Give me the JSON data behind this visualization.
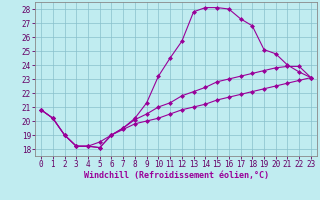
{
  "xlabel": "Windchill (Refroidissement éolien,°C)",
  "xlim": [
    -0.5,
    23.5
  ],
  "ylim": [
    17.5,
    28.5
  ],
  "xticks": [
    0,
    1,
    2,
    3,
    4,
    5,
    6,
    7,
    8,
    9,
    10,
    11,
    12,
    13,
    14,
    15,
    16,
    17,
    18,
    19,
    20,
    21,
    22,
    23
  ],
  "yticks": [
    18,
    19,
    20,
    21,
    22,
    23,
    24,
    25,
    26,
    27,
    28
  ],
  "background_color": "#c0ecf0",
  "grid_color": "#88c0cc",
  "line_color": "#990099",
  "line1_y": [
    20.8,
    20.2,
    19.0,
    18.2,
    18.2,
    18.1,
    19.0,
    19.5,
    20.2,
    21.3,
    23.2,
    24.5,
    25.7,
    27.8,
    28.1,
    28.1,
    28.0,
    27.3,
    26.8,
    25.1,
    24.8,
    24.0,
    23.5,
    23.1
  ],
  "line2_y": [
    20.8,
    20.2,
    19.0,
    18.2,
    18.2,
    18.1,
    19.0,
    19.5,
    20.1,
    20.5,
    21.0,
    21.3,
    21.8,
    22.1,
    22.4,
    22.8,
    23.0,
    23.2,
    23.4,
    23.6,
    23.8,
    23.9,
    23.9,
    23.1
  ],
  "line3_y": [
    20.8,
    20.2,
    19.0,
    18.2,
    18.2,
    18.5,
    19.0,
    19.4,
    19.8,
    20.0,
    20.2,
    20.5,
    20.8,
    21.0,
    21.2,
    21.5,
    21.7,
    21.9,
    22.1,
    22.3,
    22.5,
    22.7,
    22.9,
    23.1
  ],
  "marker": "D",
  "markersize": 2.0,
  "linewidth": 0.8,
  "tick_fontsize": 5.5,
  "xlabel_fontsize": 6.0
}
